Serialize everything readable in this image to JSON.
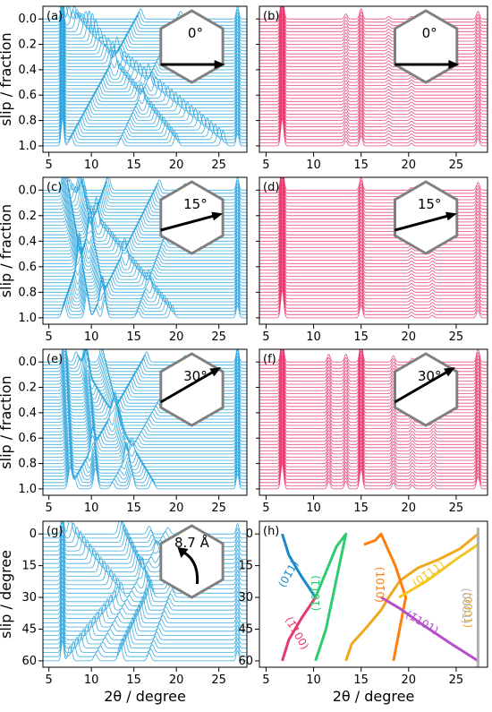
{
  "colors": {
    "blue": "#2aa3dc",
    "pink": "#e8396d",
    "hexagon": "#808080",
    "arrow": "#000000"
  },
  "chart_data": [
    {
      "panel": "(a)",
      "type": "line",
      "mode": "waterfall",
      "color": "blue",
      "xlabel": "",
      "ylabel": "slip / fraction",
      "xlim": [
        4.3,
        28.3
      ],
      "xticks": [
        "5",
        "10",
        "15",
        "20",
        "25"
      ],
      "ylim": [
        -0.1,
        1.05
      ],
      "yticks": [
        "0.0",
        "0.2",
        "0.4",
        "0.6",
        "0.8",
        "1.0"
      ],
      "inset": {
        "shape": "hexagon",
        "arrow_angle_deg": 0,
        "label": "0°"
      },
      "offsets": {
        "start": 0,
        "end": 1,
        "count": 41
      },
      "static_peaks": [
        {
          "x": 6.6,
          "amp": 0.22
        },
        {
          "x": 27.2,
          "amp": 0.1
        }
      ],
      "moving_peaks": [
        {
          "x0": 6.9,
          "x1": 25.5,
          "amp": 0.12
        },
        {
          "x0": 8.0,
          "x1": 20.0,
          "amp": 0.1
        },
        {
          "x0": 15.8,
          "x1": 7.6,
          "amp": 0.08
        },
        {
          "x0": 20.5,
          "x1": 13.5,
          "amp": 0.06
        }
      ]
    },
    {
      "panel": "(b)",
      "type": "line",
      "mode": "waterfall",
      "color": "pink",
      "xlabel": "",
      "ylabel": "",
      "xlim": [
        4.3,
        28.3
      ],
      "xticks": [
        "5",
        "10",
        "15",
        "20",
        "25"
      ],
      "ylim": [
        -0.1,
        1.05
      ],
      "yticks": [],
      "inset": {
        "shape": "hexagon",
        "arrow_angle_deg": 0,
        "label": "0°"
      },
      "offsets": {
        "start": 0,
        "end": 1,
        "count": 41
      },
      "static_peaks": [
        {
          "x": 6.7,
          "amp": 0.22
        },
        {
          "x": 15.0,
          "amp": 0.08
        },
        {
          "x": 13.4,
          "amp": 0.04
        },
        {
          "x": 27.3,
          "amp": 0.06
        },
        {
          "x": 17.9,
          "amp": 0.02
        },
        {
          "x": 20.3,
          "amp": 0.02
        }
      ],
      "moving_peaks": []
    },
    {
      "panel": "(c)",
      "type": "line",
      "mode": "waterfall",
      "color": "blue",
      "xlabel": "",
      "ylabel": "slip / fraction",
      "xlim": [
        4.3,
        28.3
      ],
      "xticks": [
        "5",
        "10",
        "15",
        "20",
        "25"
      ],
      "ylim": [
        -0.1,
        1.05
      ],
      "yticks": [
        "0.0",
        "0.2",
        "0.4",
        "0.6",
        "0.8",
        "1.0"
      ],
      "inset": {
        "shape": "hexagon",
        "arrow_angle_deg": 15,
        "label": "15°"
      },
      "offsets": {
        "start": 0,
        "end": 1,
        "count": 41
      },
      "static_peaks": [
        {
          "x": 27.2,
          "amp": 0.1
        }
      ],
      "moving_peaks": [
        {
          "x0": 6.8,
          "x1": 9.5,
          "amp": 0.2
        },
        {
          "x0": 8.6,
          "x1": 11.6,
          "amp": 0.14
        },
        {
          "x0": 7.2,
          "x1": 19.5,
          "amp": 0.1
        },
        {
          "x0": 12.0,
          "x1": 6.8,
          "amp": 0.12
        },
        {
          "x0": 18.0,
          "x1": 10.5,
          "amp": 0.08
        },
        {
          "x0": 21.0,
          "x1": 15.5,
          "amp": 0.05
        }
      ]
    },
    {
      "panel": "(d)",
      "type": "line",
      "mode": "waterfall",
      "color": "pink",
      "xlabel": "",
      "ylabel": "",
      "xlim": [
        4.3,
        28.3
      ],
      "xticks": [
        "5",
        "10",
        "15",
        "20",
        "25"
      ],
      "ylim": [
        -0.1,
        1.05
      ],
      "yticks": [],
      "inset": {
        "shape": "hexagon",
        "arrow_angle_deg": 15,
        "label": "15°"
      },
      "offsets": {
        "start": 0,
        "end": 1,
        "count": 41
      },
      "static_peaks": [
        {
          "x": 6.7,
          "amp": 0.22
        },
        {
          "x": 15.0,
          "amp": 0.1
        },
        {
          "x": 27.3,
          "amp": 0.06
        },
        {
          "x": 20.3,
          "amp": 0.02
        },
        {
          "x": 22.5,
          "amp": 0.02
        }
      ],
      "moving_peaks": []
    },
    {
      "panel": "(e)",
      "type": "line",
      "mode": "waterfall",
      "color": "blue",
      "xlabel": "",
      "ylabel": "slip / fraction",
      "xlim": [
        4.3,
        28.3
      ],
      "xticks": [
        "5",
        "10",
        "15",
        "20",
        "25"
      ],
      "ylim": [
        -0.1,
        1.05
      ],
      "yticks": [
        "0.0",
        "0.2",
        "0.4",
        "0.6",
        "0.8",
        "1.0"
      ],
      "inset": {
        "shape": "hexagon",
        "arrow_angle_deg": 30,
        "label": "30°"
      },
      "offsets": {
        "start": 0,
        "end": 1,
        "count": 41
      },
      "static_peaks": [
        {
          "x": 27.2,
          "amp": 0.12
        }
      ],
      "moving_peaks": [
        {
          "x0": 6.8,
          "x1": 7.5,
          "amp": 0.16
        },
        {
          "x0": 9.3,
          "x1": 10.5,
          "amp": 0.16
        },
        {
          "x0": 11.2,
          "x1": 14.8,
          "amp": 0.12
        },
        {
          "x0": 8.2,
          "x1": 17.2,
          "amp": 0.08
        },
        {
          "x0": 16.5,
          "x1": 8.0,
          "amp": 0.08
        },
        {
          "x0": 21.0,
          "x1": 12.5,
          "amp": 0.05
        }
      ]
    },
    {
      "panel": "(f)",
      "type": "line",
      "mode": "waterfall",
      "color": "pink",
      "xlabel": "",
      "ylabel": "",
      "xlim": [
        4.3,
        28.3
      ],
      "xticks": [
        "5",
        "10",
        "15",
        "20",
        "25"
      ],
      "ylim": [
        -0.1,
        1.05
      ],
      "yticks": [],
      "inset": {
        "shape": "hexagon",
        "arrow_angle_deg": 30,
        "label": "30°"
      },
      "offsets": {
        "start": 0,
        "end": 1,
        "count": 41
      },
      "static_peaks": [
        {
          "x": 6.7,
          "amp": 0.2
        },
        {
          "x": 15.0,
          "amp": 0.16
        },
        {
          "x": 13.4,
          "amp": 0.06
        },
        {
          "x": 11.6,
          "amp": 0.06
        },
        {
          "x": 18.4,
          "amp": 0.05
        },
        {
          "x": 27.3,
          "amp": 0.1
        },
        {
          "x": 20.4,
          "amp": 0.03
        },
        {
          "x": 22.6,
          "amp": 0.03
        }
      ],
      "moving_peaks": []
    },
    {
      "panel": "(g)",
      "type": "line",
      "mode": "waterfall",
      "color": "blue",
      "xlabel": "2θ / degree",
      "ylabel": "slip / degree",
      "xlim": [
        4.3,
        28.3
      ],
      "xticks": [
        "5",
        "10",
        "15",
        "20",
        "25"
      ],
      "ylim": [
        -6,
        63
      ],
      "yticks": [
        "0",
        "15",
        "30",
        "45",
        "60"
      ],
      "inset": {
        "shape": "hexagon",
        "arrow": "curved",
        "label": "8.7 Å"
      },
      "offsets": {
        "start": 0,
        "end": 60,
        "count": 31
      },
      "static_peaks": [
        {
          "x": 6.6,
          "amp": 0.16
        },
        {
          "x": 27.2,
          "amp": 0.08
        }
      ],
      "moving_peaks": [
        {
          "x0": 7.5,
          "x1": 13.5,
          "amp": 0.12,
          "shape": "vee"
        },
        {
          "x0": 13.4,
          "x1": 17.0,
          "amp": 0.14,
          "shape": "vee"
        },
        {
          "x0": 16.8,
          "x1": 19.5,
          "amp": 0.06,
          "shape": "vee"
        },
        {
          "x0": 19.0,
          "x1": 10.5,
          "amp": 0.05
        }
      ]
    },
    {
      "panel": "(h)",
      "type": "line",
      "mode": "indexed-curves",
      "xlabel": "2θ / degree",
      "ylabel": "",
      "xlim": [
        4.3,
        28.3
      ],
      "xticks": [
        "5",
        "10",
        "15",
        "20",
        "25"
      ],
      "ylim": [
        -6,
        63
      ],
      "yticks": [
        "0",
        "15",
        "30",
        "45",
        "60"
      ],
      "series": [
        {
          "name": "(01̄1)",
          "color": "#1a88c9",
          "x": [
            6.7,
            7.4,
            8.7,
            10.2
          ],
          "y": [
            0,
            10,
            20,
            30
          ]
        },
        {
          "name": "(1̄100)",
          "color": "#e8396d",
          "x": [
            6.7,
            7.4,
            8.7,
            10.2
          ],
          "y": [
            60,
            50,
            40,
            30
          ]
        },
        {
          "name": "(101̄1)",
          "color": "#2ecc71",
          "x": [
            10.2,
            11.3,
            12.4,
            13.4,
            11.3,
            10.2
          ],
          "y": [
            30,
            18,
            6,
            0,
            45,
            60
          ]
        },
        {
          "name": "(0001)",
          "color": "#f0a820",
          "x": [
            13.4,
            14.0,
            15.6,
            17.1,
            17.9,
            19.1,
            21.0,
            23.2,
            25.4,
            27.3
          ],
          "y": [
            60,
            52,
            44,
            36,
            30,
            22,
            16,
            12,
            7,
            0
          ]
        },
        {
          "name": "(101̄0)",
          "color": "#ff7f0e",
          "x": [
            15.3,
            16.5,
            17.1,
            18.6,
            19.7,
            18.4
          ],
          "y": [
            5,
            3,
            0,
            15,
            30,
            60
          ]
        },
        {
          "name": "(1̄101)",
          "color": "#b44fc9",
          "x": [
            17.1,
            19.0,
            21.5,
            24.5,
            27.3
          ],
          "y": [
            30,
            35,
            43,
            52,
            60
          ]
        },
        {
          "name": "(01̄11)",
          "color": "#f3c623",
          "x": [
            19.0,
            22.0,
            25.0,
            27.3
          ],
          "y": [
            30,
            22,
            12,
            5
          ]
        },
        {
          "name": "(0001)",
          "color": "#b0b0b0",
          "x": [
            27.3,
            27.3
          ],
          "y": [
            -3,
            63
          ]
        }
      ]
    }
  ]
}
